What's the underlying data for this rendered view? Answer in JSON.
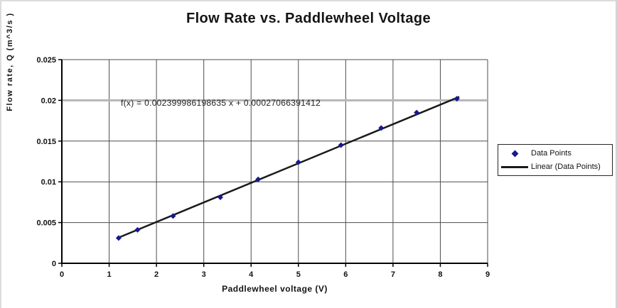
{
  "window": {
    "background": "#ffffff",
    "edge_border_color": "#dcdcdc"
  },
  "colors": {
    "gridline": "#4d4d4d",
    "emphasized_gridline": "#b5b5b5",
    "axis": "#000000",
    "tick_label": "#111111",
    "marker": "#18188f",
    "trendline": "#1a1a1a"
  },
  "chart_data": {
    "type": "scatter",
    "title": "Flow Rate vs. Paddlewheel Voltage",
    "xlabel": "Paddlewheel voltage (V)",
    "ylabel": "Flow rate, Q (m^3/s )",
    "xlim": [
      0,
      9
    ],
    "ylim": [
      0,
      0.025
    ],
    "x_ticks": [
      0,
      1,
      2,
      3,
      4,
      5,
      6,
      7,
      8,
      9
    ],
    "x_tick_labels": [
      "0",
      "1",
      "2",
      "3",
      "4",
      "5",
      "6",
      "7",
      "8",
      "9"
    ],
    "y_ticks": [
      0,
      0.005,
      0.01,
      0.015,
      0.02,
      0.025
    ],
    "y_tick_labels": [
      "0",
      "0.005",
      "0.01",
      "0.015",
      "0.02",
      "0.025"
    ],
    "grid": true,
    "emphasized_y_gridline": 0.02,
    "legend_position": "right",
    "annotation": "f(x) = 0.002399986198635 x + 0.00027066391412",
    "series": [
      {
        "name": "Data Points",
        "kind": "scatter",
        "marker": "diamond",
        "color": "#18188f",
        "points": [
          [
            1.2,
            0.0031
          ],
          [
            1.6,
            0.0041
          ],
          [
            2.35,
            0.0058
          ],
          [
            3.35,
            0.0081
          ],
          [
            4.15,
            0.0103
          ],
          [
            5.0,
            0.0124
          ],
          [
            5.9,
            0.0145
          ],
          [
            6.75,
            0.0166
          ],
          [
            7.5,
            0.0185
          ],
          [
            8.35,
            0.0202
          ]
        ]
      },
      {
        "name": "Linear (Data Points)",
        "kind": "trendline",
        "color": "#1a1a1a",
        "slope": 0.002399986198635,
        "intercept": 0.00027066391412,
        "x_range": [
          1.17,
          8.4
        ]
      }
    ]
  }
}
